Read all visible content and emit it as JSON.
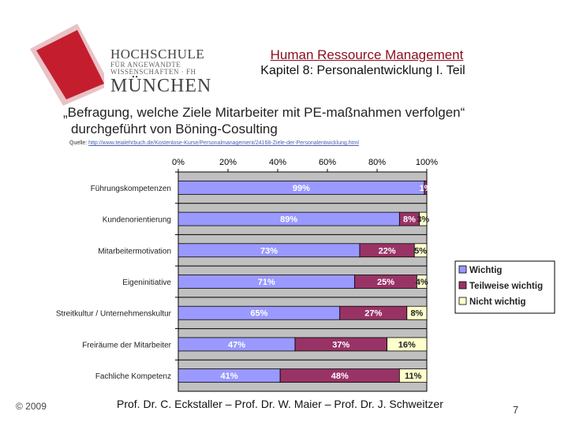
{
  "logo": {
    "line1": "HOCHSCHULE",
    "line2": "FÜR ANGEWANDTE",
    "line3": "WISSENSCHAFTEN · FH",
    "line4": "MÜNCHEN"
  },
  "header": {
    "course_title": "Human Ressource Management",
    "chapter_title": "Kapitel 8: Personalentwicklung I. Teil"
  },
  "headline": {
    "line1": "„Befragung, welche Ziele Mitarbeiter mit PE-maßnahmen verfolgen“",
    "line2": "durchgeführt von Böning-Cosulting"
  },
  "source": {
    "label": "Quelle:",
    "url": "http://www.teialehrbuch.de/Kostenlose-Kurse/Personalmanagement/24168-Ziele-der-Personalentwicklung.html"
  },
  "chart_data": {
    "type": "bar",
    "orientation": "horizontal",
    "stacked": true,
    "x_ticks": [
      "0%",
      "20%",
      "40%",
      "60%",
      "80%",
      "100%"
    ],
    "xlim": [
      0,
      100
    ],
    "categories": [
      "Führungskompetenzen",
      "Kundenorientierung",
      "Mitarbeitermotivation",
      "Eigeninitiative",
      "Streitkultur / Unternehmenskultur",
      "Freiräume der Mitarbeiter",
      "Fachliche Kompetenz"
    ],
    "series": [
      {
        "name": "Wichtig",
        "color": "#9999ff",
        "values": [
          99,
          89,
          73,
          71,
          65,
          47,
          41
        ],
        "labels": [
          "99%",
          "89%",
          "73%",
          "71%",
          "65%",
          "47%",
          "41%"
        ]
      },
      {
        "name": "Teilweise wichtig",
        "color": "#993366",
        "values": [
          1,
          8,
          22,
          25,
          27,
          37,
          48
        ],
        "labels": [
          "1%",
          "8%",
          "22%",
          "25%",
          "27%",
          "37%",
          "48%"
        ]
      },
      {
        "name": "Nicht wichtig",
        "color": "#ffffcc",
        "values": [
          0,
          3,
          5,
          4,
          8,
          16,
          11
        ],
        "labels": [
          "",
          "3%",
          "5%",
          "4%",
          "8%",
          "16%",
          "11%"
        ]
      }
    ],
    "legend_position": "right",
    "plot_background": "#c0c0c0",
    "grid": true
  },
  "footer": {
    "year": "© 2009",
    "authors": "Prof. Dr. C. Eckstaller – Prof. Dr. W. Maier – Prof. Dr. J. Schweitzer",
    "page": "7"
  },
  "colors": {
    "accent": "#8a0e1e",
    "logo_red": "#c41e2e"
  }
}
